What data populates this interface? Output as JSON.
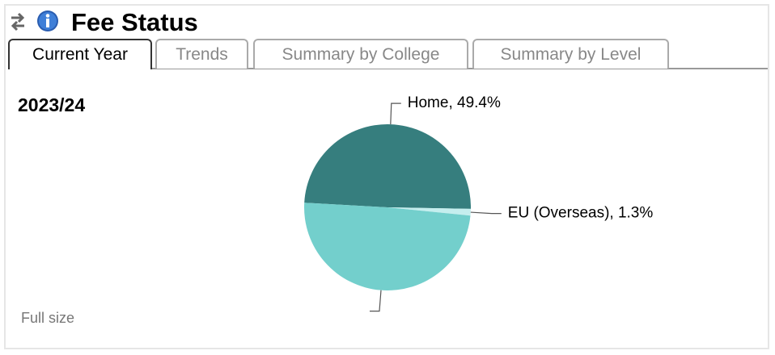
{
  "header": {
    "title": "Fee Status"
  },
  "tabs": [
    "Current Year",
    "Trends",
    "Summary by College",
    "Summary by Level"
  ],
  "chart_data": {
    "type": "pie",
    "title": "2023/24",
    "categories": [
      "Home",
      "EU (Overseas)",
      null
    ],
    "values": [
      49.4,
      1.3,
      49.3
    ],
    "value_labels": [
      "Home, 49.4%",
      "EU (Overseas), 1.3%",
      null
    ],
    "colors": [
      "#367e7e",
      "#c5eeee",
      "#73cfcc"
    ]
  },
  "footer": {
    "link": "Full size"
  }
}
